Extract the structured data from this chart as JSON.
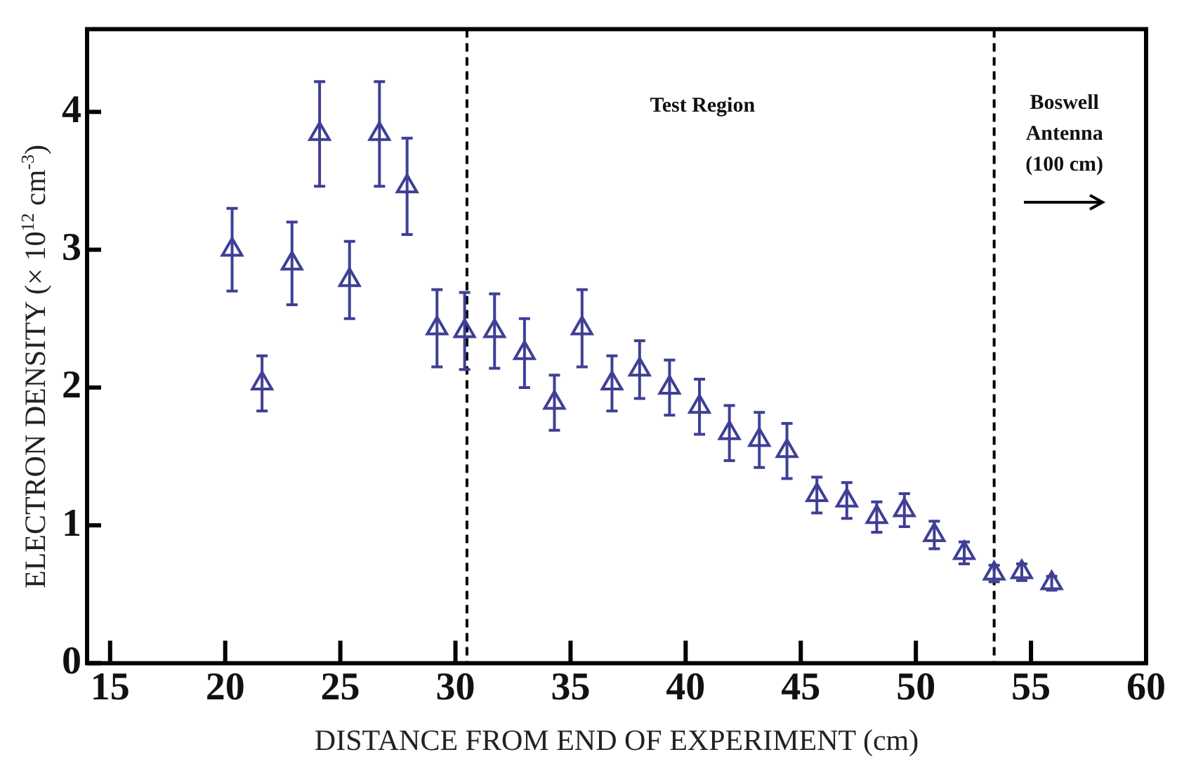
{
  "chart_data": {
    "type": "scatter",
    "xlabel": "DISTANCE FROM END OF EXPERIMENT (cm)",
    "ylabel": "ELECTRON DENSITY (× 10$^{12}$ cm$^{-3}$)",
    "xlim": [
      14,
      60
    ],
    "xticks": [
      15,
      20,
      25,
      30,
      35,
      40,
      45,
      50,
      55,
      60
    ],
    "ylim": [
      0,
      4.6
    ],
    "yticks": [
      0,
      1,
      2,
      3,
      4
    ],
    "grid": false,
    "legend": false,
    "marker": "triangle",
    "series": [
      {
        "color": "#3f3f96",
        "x": [
          20.3,
          21.6,
          22.9,
          24.1,
          25.4,
          26.7,
          27.9,
          29.2,
          30.4,
          31.7,
          33.0,
          34.3,
          35.5,
          36.8,
          38.0,
          39.3,
          40.6,
          41.9,
          43.2,
          44.4,
          45.7,
          47.0,
          48.3,
          49.5,
          50.8,
          52.1,
          53.4,
          54.6,
          55.9
        ],
        "values": [
          3.0,
          2.03,
          2.9,
          3.84,
          2.78,
          3.84,
          3.46,
          2.43,
          2.41,
          2.41,
          2.25,
          1.89,
          2.43,
          2.03,
          2.13,
          2.0,
          1.86,
          1.67,
          1.62,
          1.54,
          1.22,
          1.18,
          1.06,
          1.11,
          0.93,
          0.8,
          0.65,
          0.66,
          0.58
        ],
        "errors": [
          0.3,
          0.2,
          0.3,
          0.38,
          0.28,
          0.38,
          0.35,
          0.28,
          0.28,
          0.27,
          0.25,
          0.2,
          0.28,
          0.2,
          0.21,
          0.2,
          0.2,
          0.2,
          0.2,
          0.2,
          0.13,
          0.13,
          0.11,
          0.12,
          0.1,
          0.08,
          0.06,
          0.06,
          0.05
        ]
      }
    ],
    "ref_lines": [
      {
        "axis": "x",
        "value": 30.5,
        "color": "#000000",
        "line_style": "dashed"
      },
      {
        "axis": "x",
        "value": 53.4,
        "color": "#000000",
        "line_style": "dashed"
      }
    ],
    "annotations": [
      "Test Region",
      "Boswell\nAntenna\n(100 cm)"
    ]
  }
}
